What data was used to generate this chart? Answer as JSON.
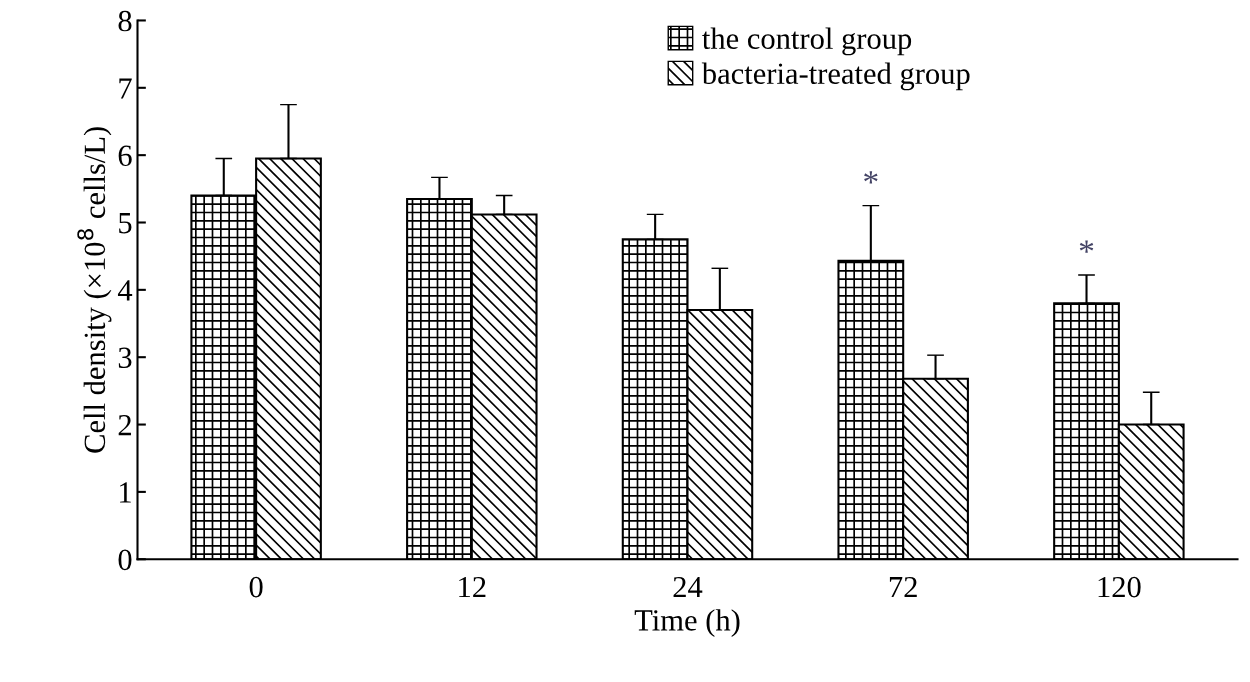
{
  "chart_data": {
    "type": "bar",
    "categories": [
      "0",
      "12",
      "24",
      "72",
      "120"
    ],
    "series": [
      {
        "name": "the control group",
        "color": "#000000",
        "values": [
          5.4,
          5.35,
          4.75,
          4.43,
          3.8
        ],
        "errors": [
          [
            5.4,
            5.95
          ],
          [
            5.35,
            5.67
          ],
          [
            4.75,
            5.12
          ],
          [
            4.43,
            5.25
          ],
          [
            3.8,
            4.22
          ]
        ]
      },
      {
        "name": "bacteria-treated group",
        "color": "#000000",
        "values": [
          5.95,
          5.12,
          3.7,
          2.68,
          2.0
        ],
        "errors": [
          [
            5.95,
            6.75
          ],
          [
            5.12,
            5.4
          ],
          [
            3.7,
            4.32
          ],
          [
            2.68,
            3.03
          ],
          [
            2.0,
            2.48
          ]
        ]
      }
    ],
    "xlabel": "Time (h)",
    "ylabel": "Cell density (×10$^{8}$ cells/L)",
    "ylim": [
      0,
      8
    ],
    "yticks": [
      0,
      1,
      2,
      3,
      4,
      5,
      6,
      7,
      8
    ],
    "annotations": [
      {
        "text": "*",
        "x": "72",
        "y": 4.43
      },
      {
        "text": "*",
        "x": "120",
        "y": 3.8
      }
    ],
    "legend": "top",
    "grid": false
  }
}
